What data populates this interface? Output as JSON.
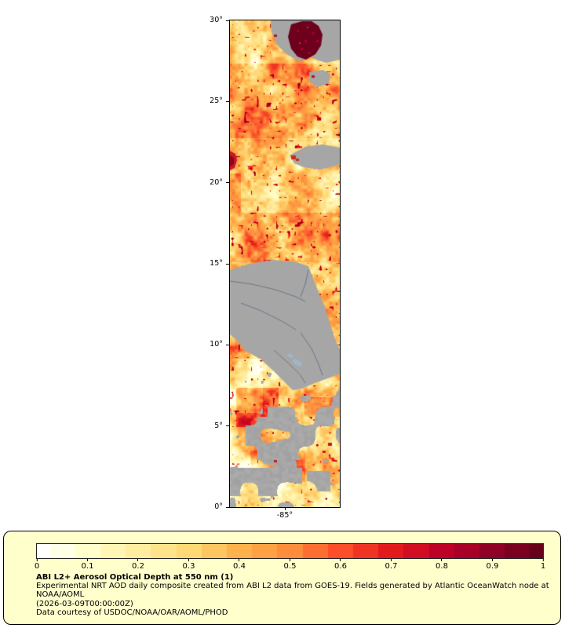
{
  "map": {
    "lat_ticks": [
      "30°",
      "25°",
      "20°",
      "15°",
      "10°",
      "5°",
      "0°"
    ],
    "lon_ticks": [
      "-85°"
    ],
    "no_data_color": "#a6a6a6",
    "frame_color": "#000000"
  },
  "colormap": {
    "stops": [
      "#ffffff",
      "#ffffcc",
      "#ffeda0",
      "#fed976",
      "#feb24c",
      "#fd8d3c",
      "#fc4e2a",
      "#e31a1c",
      "#bd0026",
      "#8f0026",
      "#640019"
    ],
    "min": 0,
    "max": 1
  },
  "legend": {
    "background": "#ffffcc",
    "ticks": [
      "0",
      "0.1",
      "0.2",
      "0.3",
      "0.4",
      "0.5",
      "0.6",
      "0.7",
      "0.8",
      "0.9",
      "1"
    ],
    "title": "ABI L2+ Aerosol Optical Depth at 550 nm (1)",
    "description": "Experimental NRT AOD daily composite created from ABI L2 data from GOES-19. Fields generated by Atlantic OceanWatch node at NOAA/AOML",
    "timestamp": "(2026-03-09T00:00:00Z)",
    "credit": "Data courtesy of USDOC/NOAA/OAR/AOML/PHOD"
  },
  "chart_data": {
    "type": "heatmap",
    "title": "ABI L2+ Aerosol Optical Depth at 550 nm (1)",
    "y_axis": {
      "tick_labels": [
        "30°",
        "25°",
        "20°",
        "15°",
        "10°",
        "5°",
        "0°"
      ],
      "range_degrees_lat": [
        0,
        30
      ]
    },
    "x_axis": {
      "tick_labels": [
        "-85°"
      ]
    },
    "colorbar": {
      "range": [
        0,
        1
      ],
      "ticks": [
        0,
        0.1,
        0.2,
        0.3,
        0.4,
        0.5,
        0.6,
        0.7,
        0.8,
        0.9,
        1
      ],
      "palette_stops": [
        "#ffffff",
        "#ffffcc",
        "#ffeda0",
        "#fed976",
        "#feb24c",
        "#fd8d3c",
        "#fc4e2a",
        "#e31a1c",
        "#bd0026",
        "#8f0026",
        "#640019"
      ]
    },
    "no_data_color": "#a6a6a6"
  }
}
